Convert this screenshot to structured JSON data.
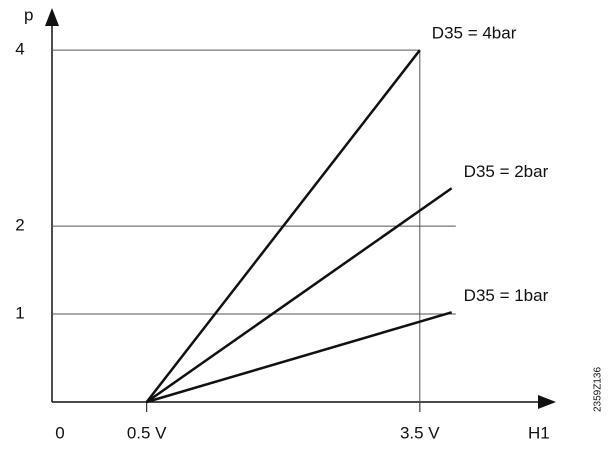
{
  "chart_data": {
    "type": "line",
    "y_label": "p",
    "x_label": "H1",
    "origin_label": "0",
    "figure_id": "2359Z136",
    "xlim": [
      -0.54,
      4.93
    ],
    "ylim": [
      0,
      4.4
    ],
    "xticks": [
      {
        "value": 0.5,
        "label": "0.5 V"
      },
      {
        "value": 3.5,
        "label": "3.5 V"
      }
    ],
    "yticks": [
      1,
      2,
      4
    ],
    "vline": 3.5,
    "grid": true,
    "series": [
      {
        "name": "D35 = 4bar",
        "color": "#111111",
        "x": [
          0.5,
          3.5
        ],
        "values": [
          0,
          4
        ]
      },
      {
        "name": "D35 = 2bar",
        "color": "#111111",
        "x": [
          0.5,
          3.85
        ],
        "values": [
          0,
          2.43
        ]
      },
      {
        "name": "D35 = 1bar",
        "color": "#111111",
        "x": [
          0.5,
          3.85
        ],
        "values": [
          0,
          1.02
        ]
      }
    ]
  }
}
